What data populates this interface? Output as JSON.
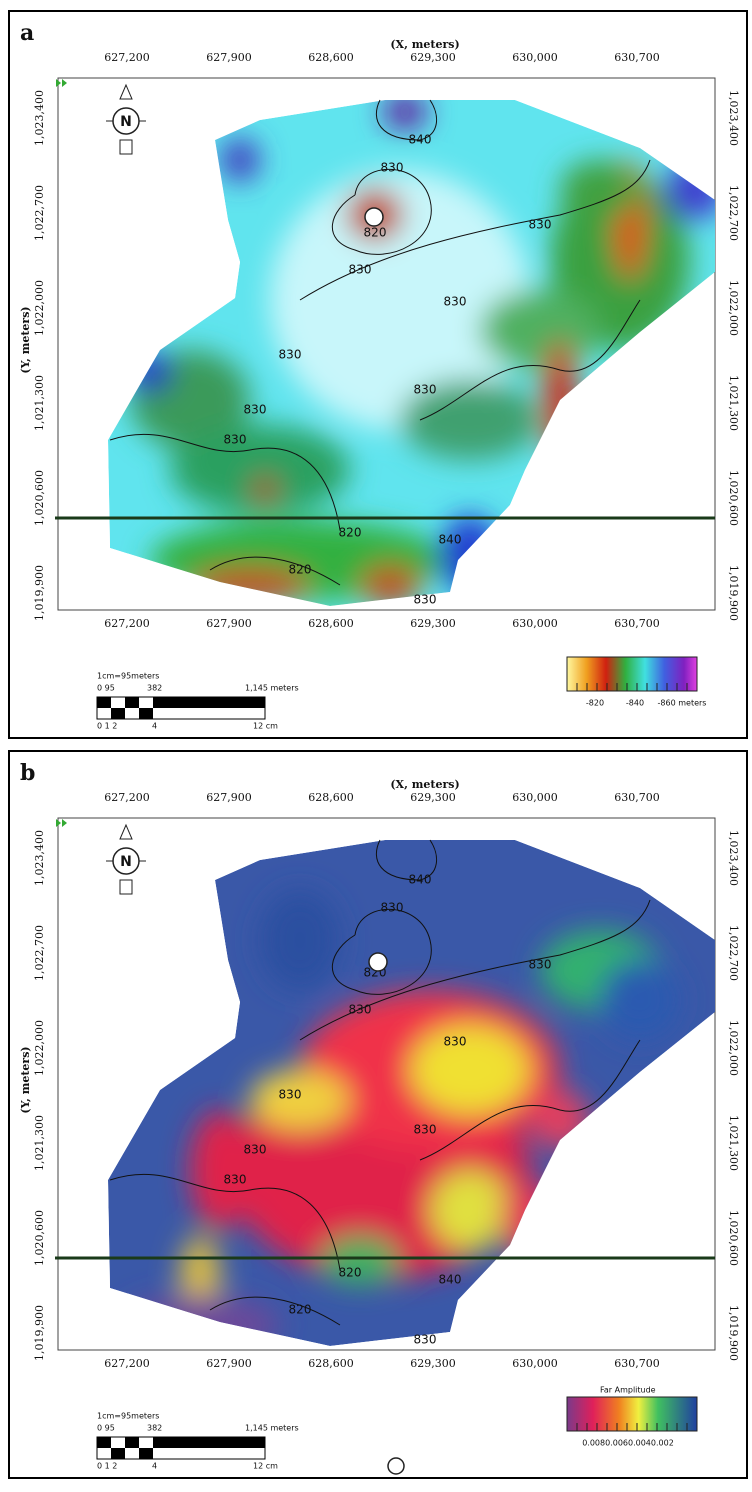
{
  "panels": [
    {
      "label": "a",
      "x_axis_title": "(X, meters)",
      "y_axis_title": "(Y, meters)",
      "x_ticks": [
        "627,200",
        "627,900",
        "628,600",
        "629,300",
        "630,000",
        "630,700"
      ],
      "y_ticks": [
        "1,023,400",
        "1,022,700",
        "1,022,000",
        "1,021,300",
        "1,020,600",
        "1,019,900"
      ],
      "north": "N",
      "contour_labels": [
        "840",
        "830",
        "820",
        "830",
        "830",
        "830",
        "830",
        "830",
        "820",
        "830",
        "820",
        "830",
        "830",
        "840"
      ],
      "scale": {
        "ratio": "1cm=95meters",
        "top_labels": [
          "0 95",
          "382",
          "1,145 meters"
        ],
        "bottom_labels": [
          "0 1 2",
          "4",
          "12 cm"
        ]
      },
      "colorbar": {
        "labels": [
          "-820",
          "-840",
          "-860 meters"
        ]
      }
    },
    {
      "label": "b",
      "x_axis_title": "(X, meters)",
      "y_axis_title": "(Y, meters)",
      "x_ticks": [
        "627,200",
        "627,900",
        "628,600",
        "629,300",
        "630,000",
        "630,700"
      ],
      "y_ticks": [
        "1,023,400",
        "1,022,700",
        "1,022,000",
        "1,021,300",
        "1,020,600",
        "1,019,900"
      ],
      "north": "N",
      "contour_labels": [
        "840",
        "830",
        "820",
        "830",
        "830",
        "830",
        "830",
        "830",
        "820",
        "830",
        "820",
        "830",
        "830",
        "840"
      ],
      "scale": {
        "ratio": "1cm=95meters",
        "top_labels": [
          "0 95",
          "382",
          "1,145 meters"
        ],
        "bottom_labels": [
          "0 1 2",
          "4",
          "12 cm"
        ]
      },
      "colorbar": {
        "title": "Far Amplitude",
        "labels": [
          "0.0080.0060.0040.002"
        ]
      }
    }
  ]
}
